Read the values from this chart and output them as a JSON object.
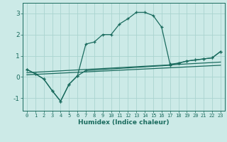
{
  "xlabel": "Humidex (Indice chaleur)",
  "bg_color": "#cceae7",
  "line_color": "#1a6b5e",
  "grid_color": "#aad4d0",
  "xlim": [
    -0.5,
    23.5
  ],
  "ylim": [
    -1.6,
    3.5
  ],
  "yticks": [
    -1,
    0,
    1,
    2,
    3
  ],
  "xticks": [
    0,
    1,
    2,
    3,
    4,
    5,
    6,
    7,
    8,
    9,
    10,
    11,
    12,
    13,
    14,
    15,
    16,
    17,
    18,
    19,
    20,
    21,
    22,
    23
  ],
  "line1_x": [
    0,
    1,
    2,
    3,
    4,
    5,
    6,
    7,
    8,
    9,
    10,
    11,
    12,
    13,
    14,
    15,
    16,
    17,
    18,
    19,
    20,
    21,
    22,
    23
  ],
  "line1_y": [
    0.35,
    0.15,
    -0.1,
    -0.65,
    -1.15,
    -0.35,
    0.05,
    1.55,
    1.65,
    2.0,
    2.0,
    2.5,
    2.75,
    3.05,
    3.05,
    2.9,
    2.35,
    0.6,
    0.65,
    0.75,
    0.8,
    0.85,
    0.9,
    1.2
  ],
  "line2_x": [
    0,
    1,
    2,
    3,
    4,
    5,
    6,
    7,
    17,
    18,
    19,
    20,
    21,
    22,
    23
  ],
  "line2_y": [
    0.35,
    0.15,
    -0.1,
    -0.65,
    -1.15,
    -0.35,
    0.05,
    0.3,
    0.55,
    0.65,
    0.75,
    0.8,
    0.85,
    0.9,
    1.2
  ],
  "line3_x": [
    0,
    23
  ],
  "line3_y": [
    0.1,
    0.55
  ],
  "line4_x": [
    0,
    23
  ],
  "line4_y": [
    0.2,
    0.7
  ]
}
